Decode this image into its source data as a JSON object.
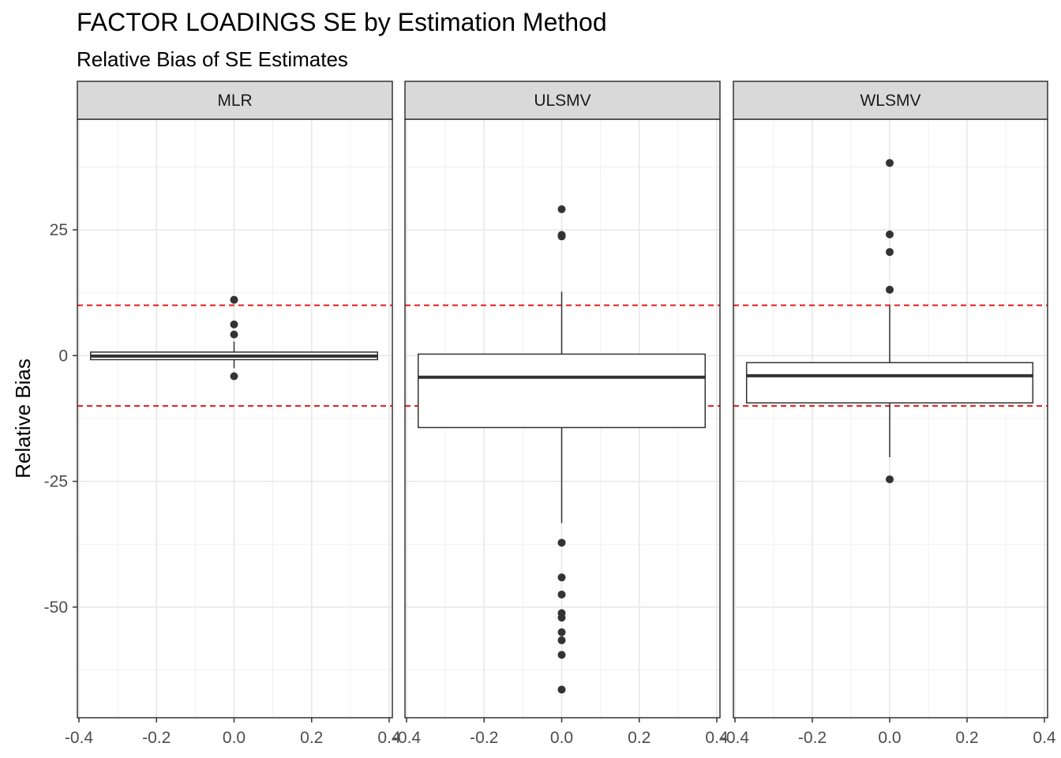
{
  "chart_data": {
    "type": "boxplot",
    "title": "FACTOR LOADINGS SE by Estimation Method",
    "subtitle": "Relative Bias of SE Estimates",
    "xlabel": "",
    "ylabel": "Relative Bias",
    "xlim": [
      -0.4,
      0.4
    ],
    "ylim": [
      -72,
      47
    ],
    "x_ticks": [
      -0.4,
      -0.2,
      0.0,
      0.2,
      0.4
    ],
    "x_tick_labels": [
      "-0.4",
      "-0.2",
      "0.0",
      "0.2",
      "0.4"
    ],
    "y_ticks": [
      -50,
      -25,
      0,
      25
    ],
    "y_tick_labels": [
      "-50",
      "-25",
      "0",
      "25"
    ],
    "reference_lines": [
      10,
      -10
    ],
    "reference_line_color": "#e41a1c",
    "grid": true,
    "legend": "none",
    "facets": [
      {
        "name": "MLR",
        "box": {
          "q1": -0.8,
          "median": -0.1,
          "q3": 0.7,
          "whisker_low": -2.5,
          "whisker_high": 2.8
        },
        "outliers": [
          11.1,
          6.2,
          4.2,
          -4.1
        ]
      },
      {
        "name": "ULSMV",
        "box": {
          "q1": -14.3,
          "median": -4.3,
          "q3": 0.3,
          "whisker_low": -33.3,
          "whisker_high": 12.7
        },
        "outliers": [
          29.1,
          24.0,
          23.7,
          -37.2,
          -44.1,
          -47.5,
          -51.2,
          -52.1,
          -55.0,
          -56.6,
          -59.5,
          -66.4
        ]
      },
      {
        "name": "WLSMV",
        "box": {
          "q1": -9.4,
          "median": -4.0,
          "q3": -1.4,
          "whisker_low": -20.2,
          "whisker_high": 9.9
        },
        "outliers": [
          38.3,
          24.1,
          20.6,
          13.1,
          -24.6
        ]
      }
    ]
  }
}
